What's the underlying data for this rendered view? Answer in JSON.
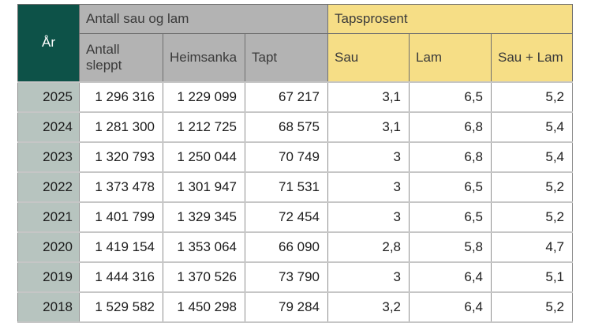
{
  "page": {
    "background": "#ffffff"
  },
  "table": {
    "group_headers": {
      "year": "År",
      "counts": "Antall sau og lam",
      "loss_percent": "Tapsprosent"
    },
    "column_headers": {
      "antall_sleppt": "Antall sleppt",
      "heimsanka": "Heimsanka",
      "tapt": "Tapt",
      "sau": "Sau",
      "lam": "Lam",
      "sau_lam": "Sau + Lam"
    },
    "rows": [
      {
        "year": "2025",
        "antall_sleppt": "1 296 316",
        "heimsanka": "1 229 099",
        "tapt": "67 217",
        "sau": "3,1",
        "lam": "6,5",
        "sau_lam": "5,2"
      },
      {
        "year": "2024",
        "antall_sleppt": "1 281 300",
        "heimsanka": "1 212 725",
        "tapt": "68 575",
        "sau": "3,1",
        "lam": "6,8",
        "sau_lam": "5,4"
      },
      {
        "year": "2023",
        "antall_sleppt": "1 320 793",
        "heimsanka": "1 250 044",
        "tapt": "70 749",
        "sau": "3",
        "lam": "6,8",
        "sau_lam": "5,4"
      },
      {
        "year": "2022",
        "antall_sleppt": "1 373 478",
        "heimsanka": "1 301 947",
        "tapt": "71 531",
        "sau": "3",
        "lam": "6,5",
        "sau_lam": "5,2"
      },
      {
        "year": "2021",
        "antall_sleppt": "1 401 799",
        "heimsanka": "1 329 345",
        "tapt": "72 454",
        "sau": "3",
        "lam": "6,5",
        "sau_lam": "5,2"
      },
      {
        "year": "2020",
        "antall_sleppt": "1 419 154",
        "heimsanka": "1 353 064",
        "tapt": "66 090",
        "sau": "2,8",
        "lam": "5,8",
        "sau_lam": "4,7"
      },
      {
        "year": "2019",
        "antall_sleppt": "1 444 316",
        "heimsanka": "1 370 526",
        "tapt": "73 790",
        "sau": "3",
        "lam": "6,4",
        "sau_lam": "5,1"
      },
      {
        "year": "2018",
        "antall_sleppt": "1 529 582",
        "heimsanka": "1 450 298",
        "tapt": "79 284",
        "sau": "3,2",
        "lam": "6,4",
        "sau_lam": "5,2"
      }
    ],
    "colors": {
      "year_header_bg": "#0d5248",
      "year_header_text": "#ffffff",
      "year_cell_bg": "#b7c4bf",
      "counts_header_bg": "#b3b3b3",
      "loss_header_bg": "#f6de86",
      "header_text": "#3a3a3a",
      "data_text": "#1c1c1c"
    }
  },
  "chart_data": {
    "type": "table",
    "title": "",
    "column_groups": [
      {
        "label": "Antall sau og lam",
        "columns": [
          "Antall sleppt",
          "Heimsanka",
          "Tapt"
        ]
      },
      {
        "label": "Tapsprosent",
        "columns": [
          "Sau",
          "Lam",
          "Sau + Lam"
        ]
      }
    ],
    "columns": [
      "År",
      "Antall sleppt",
      "Heimsanka",
      "Tapt",
      "Sau",
      "Lam",
      "Sau + Lam"
    ],
    "rows": [
      [
        2025,
        1296316,
        1229099,
        67217,
        3.1,
        6.5,
        5.2
      ],
      [
        2024,
        1281300,
        1212725,
        68575,
        3.1,
        6.8,
        5.4
      ],
      [
        2023,
        1320793,
        1250044,
        70749,
        3.0,
        6.8,
        5.4
      ],
      [
        2022,
        1373478,
        1301947,
        71531,
        3.0,
        6.5,
        5.2
      ],
      [
        2021,
        1401799,
        1329345,
        72454,
        3.0,
        6.5,
        5.2
      ],
      [
        2020,
        1419154,
        1353064,
        66090,
        2.8,
        5.8,
        4.7
      ],
      [
        2019,
        1444316,
        1370526,
        73790,
        3.0,
        6.4,
        5.1
      ],
      [
        2018,
        1529582,
        1450298,
        79284,
        3.2,
        6.4,
        5.2
      ]
    ],
    "notes": "Decimal values shown with comma separator; thousands separated by space. Bottom row (2018) partially clipped by viewport."
  }
}
